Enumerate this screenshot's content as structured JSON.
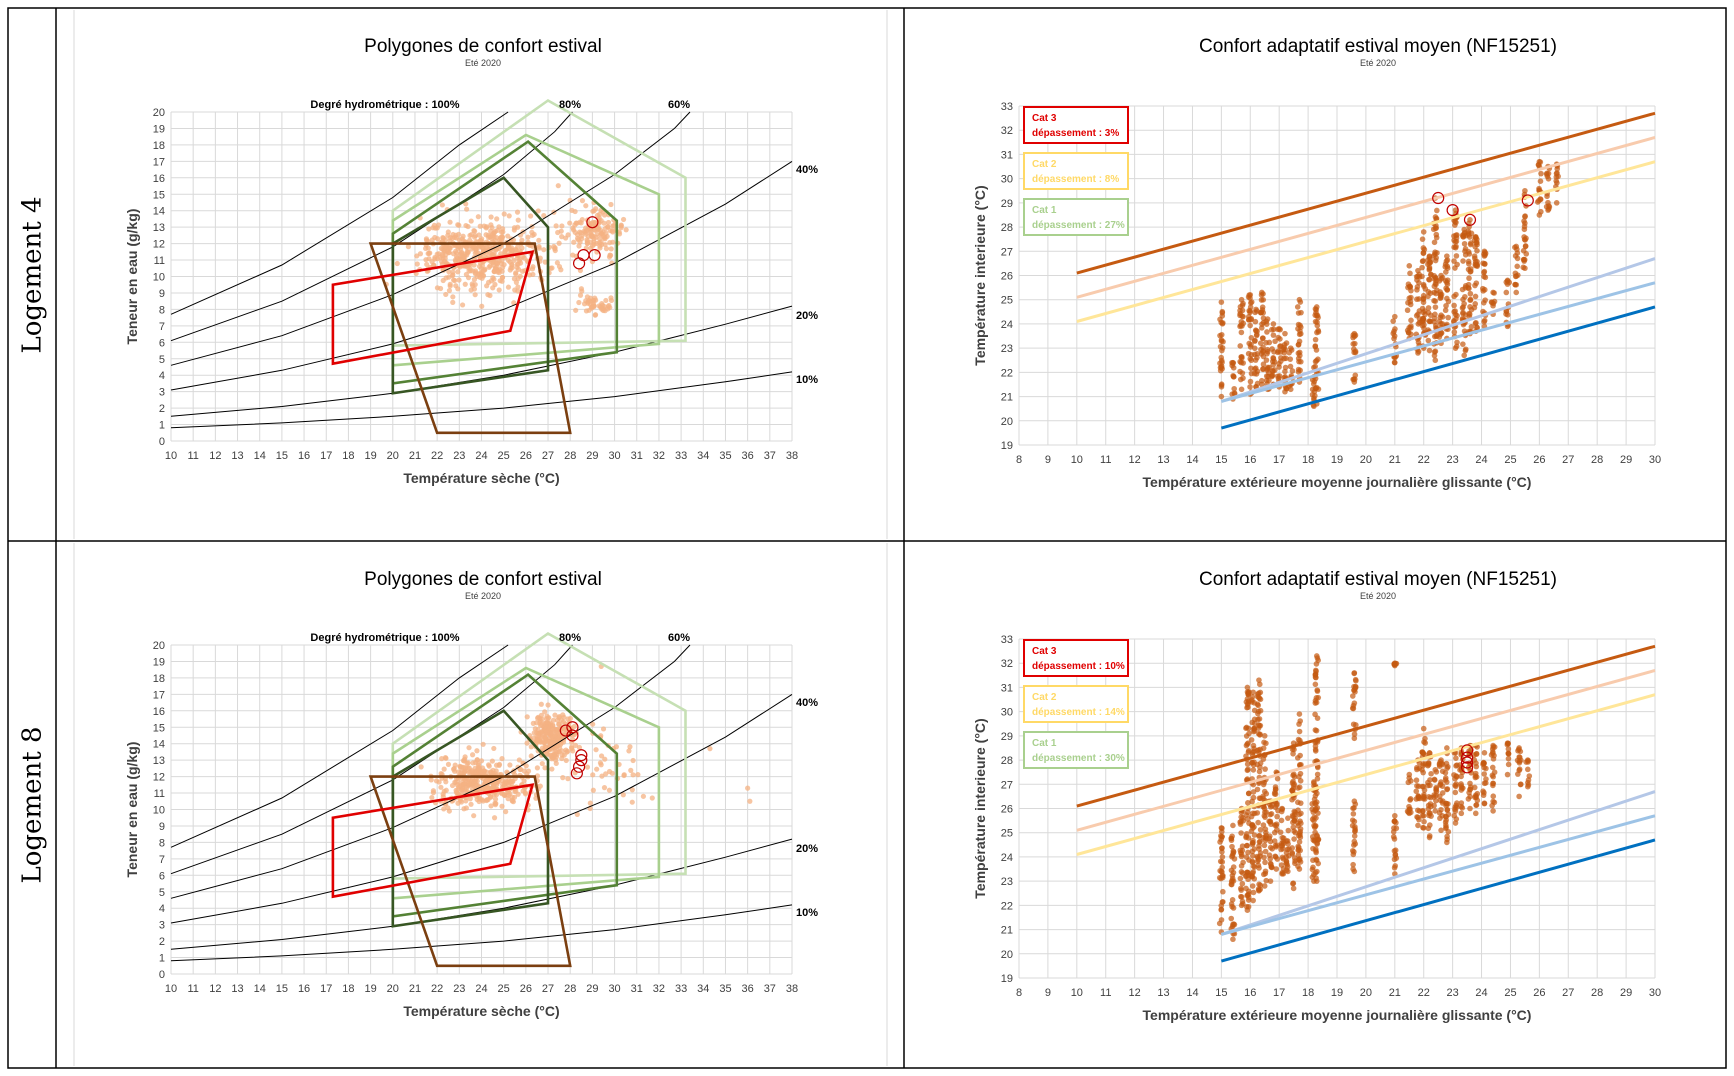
{
  "rows": [
    {
      "label": "Logement 4"
    },
    {
      "label": "Logement 8"
    }
  ],
  "psychro_common": {
    "title": "Polygones de confort estival",
    "subtitle": "Eté 2020",
    "xlabel": "Température sèche (°C)",
    "ylabel": "Teneur en eau (g/kg)",
    "xlim": [
      10,
      38
    ],
    "ylim": [
      0,
      20
    ],
    "rh_labels": {
      "rh100": "Degré hydrométrique : 100%",
      "rh80": "80%",
      "rh60": "60%",
      "rh40": "40%",
      "rh20": "20%",
      "rh10": "10%"
    },
    "rh_curves": [
      {
        "rh": 100,
        "points": [
          [
            10,
            7.7
          ],
          [
            15,
            10.7
          ],
          [
            20,
            14.8
          ],
          [
            23,
            18.0
          ],
          [
            25.2,
            20
          ]
        ]
      },
      {
        "rh": 80,
        "points": [
          [
            10,
            6.1
          ],
          [
            15,
            8.5
          ],
          [
            20,
            11.8
          ],
          [
            25,
            16.2
          ],
          [
            27.3,
            18.8
          ],
          [
            28.1,
            20
          ]
        ]
      },
      {
        "rh": 60,
        "points": [
          [
            10,
            4.6
          ],
          [
            15,
            6.4
          ],
          [
            20,
            8.9
          ],
          [
            25,
            12.0
          ],
          [
            30,
            16.2
          ],
          [
            32.7,
            19.0
          ],
          [
            33.4,
            20
          ]
        ]
      },
      {
        "rh": 40,
        "points": [
          [
            10,
            3.1
          ],
          [
            15,
            4.3
          ],
          [
            20,
            5.9
          ],
          [
            25,
            8.0
          ],
          [
            30,
            10.8
          ],
          [
            35,
            14.4
          ],
          [
            38,
            17
          ]
        ]
      },
      {
        "rh": 20,
        "points": [
          [
            10,
            1.5
          ],
          [
            15,
            2.1
          ],
          [
            20,
            2.9
          ],
          [
            25,
            4.0
          ],
          [
            30,
            5.4
          ],
          [
            35,
            7.1
          ],
          [
            38,
            8.2
          ]
        ]
      },
      {
        "rh": 10,
        "points": [
          [
            10,
            0.8
          ],
          [
            15,
            1.1
          ],
          [
            20,
            1.5
          ],
          [
            25,
            2.0
          ],
          [
            30,
            2.7
          ],
          [
            35,
            3.6
          ],
          [
            38,
            4.2
          ]
        ]
      }
    ],
    "polygons": [
      {
        "color": "#c6e0b4",
        "points": [
          [
            20,
            5.8
          ],
          [
            20,
            14.0
          ],
          [
            27,
            20.7
          ],
          [
            33.2,
            16.0
          ],
          [
            33.2,
            6.1
          ]
        ]
      },
      {
        "color": "#a9d08e",
        "points": [
          [
            20,
            4.6
          ],
          [
            20,
            13.4
          ],
          [
            26,
            18.6
          ],
          [
            32,
            15.0
          ],
          [
            32,
            5.9
          ]
        ]
      },
      {
        "color": "#548235",
        "points": [
          [
            20,
            3.5
          ],
          [
            20,
            12.6
          ],
          [
            26.1,
            18.2
          ],
          [
            30.1,
            13.4
          ],
          [
            30.1,
            5.4
          ]
        ]
      },
      {
        "color": "#375623",
        "points": [
          [
            20,
            2.9
          ],
          [
            20,
            12.0
          ],
          [
            25,
            16.0
          ],
          [
            27,
            13.0
          ],
          [
            27,
            4.3
          ]
        ]
      },
      {
        "color": "#7b3f10",
        "points": [
          [
            19,
            12.0
          ],
          [
            26.4,
            12.0
          ],
          [
            28,
            0.5
          ],
          [
            22,
            0.5
          ]
        ]
      },
      {
        "color": "#e00000",
        "points": [
          [
            17.3,
            4.7
          ],
          [
            17.3,
            9.5
          ],
          [
            26.3,
            11.5
          ],
          [
            25.3,
            6.7
          ]
        ]
      }
    ]
  },
  "adaptive_common": {
    "title": "Confort adaptatif estival moyen (NF15251)",
    "subtitle": "Eté 2020",
    "xlabel": "Température extérieure moyenne journalière glissante (°C)",
    "ylabel": "Température interieure (°C)",
    "xlim": [
      8,
      30
    ],
    "ylim": [
      19,
      33
    ],
    "lines": [
      {
        "name": "cat3_upper",
        "color": "#c55a11",
        "points": [
          [
            10,
            26.1
          ],
          [
            30,
            32.7
          ]
        ]
      },
      {
        "name": "cat2_upper",
        "color": "#f8cbad",
        "points": [
          [
            10,
            25.1
          ],
          [
            30,
            31.7
          ]
        ]
      },
      {
        "name": "cat1_upper",
        "color": "#ffe699",
        "points": [
          [
            10,
            24.1
          ],
          [
            30,
            30.7
          ]
        ]
      },
      {
        "name": "cat1_lower",
        "color": "#b4c7e7",
        "points": [
          [
            15,
            20.8
          ],
          [
            30,
            26.7
          ]
        ]
      },
      {
        "name": "cat2_lower",
        "color": "#9dc3e6",
        "points": [
          [
            15,
            20.8
          ],
          [
            30,
            25.7
          ]
        ]
      },
      {
        "name": "cat3_lower",
        "color": "#0070c0",
        "points": [
          [
            15,
            19.7
          ],
          [
            30,
            24.7
          ]
        ]
      }
    ]
  },
  "charts": [
    {
      "id": "psy4",
      "chart_data": {
        "type": "scatter",
        "title": "Polygones de confort estival",
        "point_color": "#f4b183",
        "clouds": [
          {
            "cx": 24.0,
            "cy": 11.3,
            "sx": 2.6,
            "sy": 1.9,
            "n": 520
          },
          {
            "cx": 29.0,
            "cy": 12.8,
            "sx": 1.2,
            "sy": 1.4,
            "n": 150
          },
          {
            "cx": 29.2,
            "cy": 8.3,
            "sx": 0.7,
            "sy": 0.6,
            "n": 45
          }
        ],
        "highlights": [
          [
            28.6,
            11.3
          ],
          [
            29.1,
            11.3
          ],
          [
            28.4,
            10.8
          ],
          [
            29.0,
            13.3
          ]
        ]
      }
    },
    {
      "id": "ada4",
      "chart_data": {
        "type": "scatter",
        "title": "Confort adaptatif estival moyen (NF15251)",
        "point_color": "#c55a11",
        "legend": [
          {
            "cat": "Cat 3",
            "text": "dépassement : 3%",
            "color": "#e00000"
          },
          {
            "cat": "Cat 2",
            "text": "dépassement : 8%",
            "color": "#ffd966"
          },
          {
            "cat": "Cat 1",
            "text": "dépassement : 27%",
            "color": "#a9d08e"
          }
        ],
        "columns": [
          [
            15.0,
            21.0,
            24.9
          ],
          [
            15.4,
            20.9,
            22.4
          ],
          [
            15.7,
            21.3,
            25.0
          ],
          [
            16.0,
            21.1,
            25.2
          ],
          [
            16.2,
            21.4,
            24.6
          ],
          [
            16.4,
            21.5,
            25.3
          ],
          [
            16.6,
            21.3,
            24.2
          ],
          [
            16.8,
            21.5,
            24.0
          ],
          [
            17.0,
            21.4,
            23.8
          ],
          [
            17.2,
            21.2,
            23.6
          ],
          [
            17.4,
            21.3,
            23.0
          ],
          [
            17.7,
            21.6,
            25.0
          ],
          [
            18.2,
            20.6,
            22.2
          ],
          [
            18.3,
            20.7,
            24.7
          ],
          [
            19.6,
            21.6,
            23.6
          ],
          [
            21.0,
            22.4,
            24.3
          ],
          [
            21.5,
            23.4,
            26.4
          ],
          [
            21.8,
            22.8,
            26.2
          ],
          [
            22.0,
            23.0,
            27.8
          ],
          [
            22.2,
            22.9,
            26.8
          ],
          [
            22.4,
            22.5,
            29.2
          ],
          [
            22.6,
            23.2,
            26.0
          ],
          [
            22.8,
            23.4,
            26.8
          ],
          [
            23.1,
            23.0,
            28.7
          ],
          [
            23.4,
            22.7,
            27.9
          ],
          [
            23.6,
            23.6,
            28.3
          ],
          [
            23.8,
            23.7,
            27.6
          ],
          [
            24.1,
            23.9,
            27.0
          ],
          [
            24.4,
            24.4,
            25.3
          ],
          [
            24.9,
            23.9,
            25.8
          ],
          [
            25.2,
            25.3,
            27.2
          ],
          [
            25.5,
            26.3,
            29.5
          ],
          [
            26.0,
            28.5,
            30.7
          ],
          [
            26.3,
            28.7,
            30.5
          ],
          [
            26.6,
            29.0,
            30.6
          ]
        ],
        "highlights": [
          [
            22.5,
            29.2
          ],
          [
            23.0,
            28.7
          ],
          [
            23.6,
            28.3
          ],
          [
            25.6,
            29.1
          ]
        ]
      }
    },
    {
      "id": "psy8",
      "chart_data": {
        "type": "scatter",
        "title": "Polygones de confort estival",
        "point_color": "#f4b183",
        "clouds": [
          {
            "cx": 24.1,
            "cy": 11.6,
            "sx": 2.0,
            "sy": 1.5,
            "n": 380
          },
          {
            "cx": 27.2,
            "cy": 14.4,
            "sx": 0.9,
            "sy": 1.1,
            "n": 260
          },
          {
            "cx": 29.5,
            "cy": 12.4,
            "sx": 1.4,
            "sy": 2.4,
            "n": 40
          }
        ],
        "extras": [
          [
            34.3,
            13.7
          ],
          [
            36.0,
            11.3
          ],
          [
            36.1,
            10.5
          ],
          [
            31.7,
            10.7
          ],
          [
            31.3,
            10.8
          ],
          [
            30.8,
            11.2
          ],
          [
            29.4,
            18.7
          ],
          [
            29.9,
            12.2
          ]
        ],
        "highlights": [
          [
            27.8,
            14.8
          ],
          [
            28.1,
            14.5
          ],
          [
            28.5,
            13.3
          ],
          [
            28.5,
            13.0
          ],
          [
            28.4,
            12.6
          ],
          [
            28.3,
            12.2
          ],
          [
            28.1,
            15.0
          ]
        ]
      }
    },
    {
      "id": "ada8",
      "chart_data": {
        "type": "scatter",
        "title": "Confort adaptatif estival moyen (NF15251)",
        "point_color": "#c55a11",
        "legend": [
          {
            "cat": "Cat 3",
            "text": "dépassement : 10%",
            "color": "#e00000"
          },
          {
            "cat": "Cat 2",
            "text": "dépassement : 14%",
            "color": "#ffd966"
          },
          {
            "cat": "Cat 1",
            "text": "dépassement : 30%",
            "color": "#a9d08e"
          }
        ],
        "columns": [
          [
            15.0,
            20.9,
            25.2
          ],
          [
            15.4,
            20.6,
            25.3
          ],
          [
            15.7,
            22.0,
            26.0
          ],
          [
            15.9,
            21.8,
            31.0
          ],
          [
            16.1,
            22.2,
            30.8
          ],
          [
            16.3,
            22.6,
            31.3
          ],
          [
            16.5,
            22.8,
            29.0
          ],
          [
            16.7,
            23.0,
            26.3
          ],
          [
            16.9,
            23.5,
            27.5
          ],
          [
            17.1,
            23.3,
            26.0
          ],
          [
            17.3,
            23.4,
            25.6
          ],
          [
            17.5,
            22.7,
            28.7
          ],
          [
            17.7,
            23.5,
            29.9
          ],
          [
            18.2,
            23.0,
            27.1
          ],
          [
            18.3,
            23.0,
            32.3
          ],
          [
            19.6,
            23.4,
            26.3
          ],
          [
            19.6,
            28.9,
            31.6
          ],
          [
            21.0,
            23.3,
            25.7
          ],
          [
            21.0,
            31.9,
            32.0
          ],
          [
            21.5,
            25.8,
            27.4
          ],
          [
            21.8,
            25.3,
            28.0
          ],
          [
            22.0,
            25.2,
            29.3
          ],
          [
            22.2,
            24.8,
            28.3
          ],
          [
            22.4,
            25.9,
            27.6
          ],
          [
            22.6,
            25.1,
            28.0
          ],
          [
            22.8,
            24.6,
            28.5
          ],
          [
            23.1,
            25.4,
            28.3
          ],
          [
            23.3,
            25.8,
            28.5
          ],
          [
            23.6,
            26.0,
            28.6
          ],
          [
            23.8,
            25.8,
            28.6
          ],
          [
            24.1,
            26.2,
            28.3
          ],
          [
            24.4,
            25.9,
            28.6
          ],
          [
            24.9,
            27.4,
            28.7
          ],
          [
            25.3,
            26.5,
            28.5
          ],
          [
            25.6,
            26.9,
            28.0
          ]
        ],
        "highlights": [
          [
            23.5,
            28.4
          ],
          [
            23.5,
            28.1
          ],
          [
            23.5,
            27.9
          ],
          [
            23.5,
            27.7
          ]
        ]
      }
    }
  ]
}
